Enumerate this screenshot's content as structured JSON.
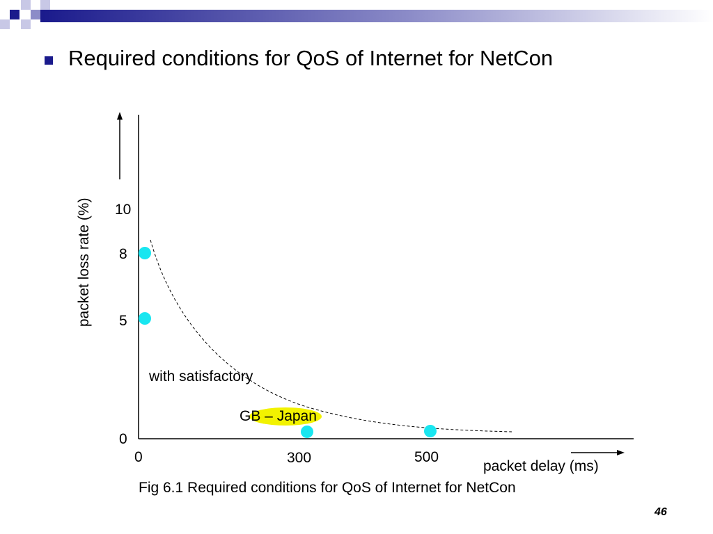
{
  "slide": {
    "title": "Required conditions for QoS of Internet for NetCon",
    "caption": "Fig 6.1 Required conditions for QoS of Internet for NetCon",
    "page_number": "46"
  },
  "colors": {
    "accent": "#1a1a8c",
    "point": "#19e6f0",
    "highlight": "#f2f200"
  },
  "chart_data": {
    "type": "scatter",
    "xlabel": "packet delay (ms)",
    "ylabel": "packet loss rate (%)",
    "x_ticks": [
      "0",
      "300",
      "500"
    ],
    "y_ticks": [
      "0",
      "5",
      "8",
      "10"
    ],
    "points": [
      {
        "x": 0,
        "y": 8
      },
      {
        "x": 0,
        "y": 5
      },
      {
        "x": 300,
        "y": 0
      },
      {
        "x": 500,
        "y": 0
      }
    ],
    "curve": {
      "style": "dashed",
      "shape": "decreasing"
    },
    "annotations": [
      {
        "text": "with satisfactory"
      },
      {
        "text": "GB – Japan",
        "highlighted": true
      }
    ]
  }
}
